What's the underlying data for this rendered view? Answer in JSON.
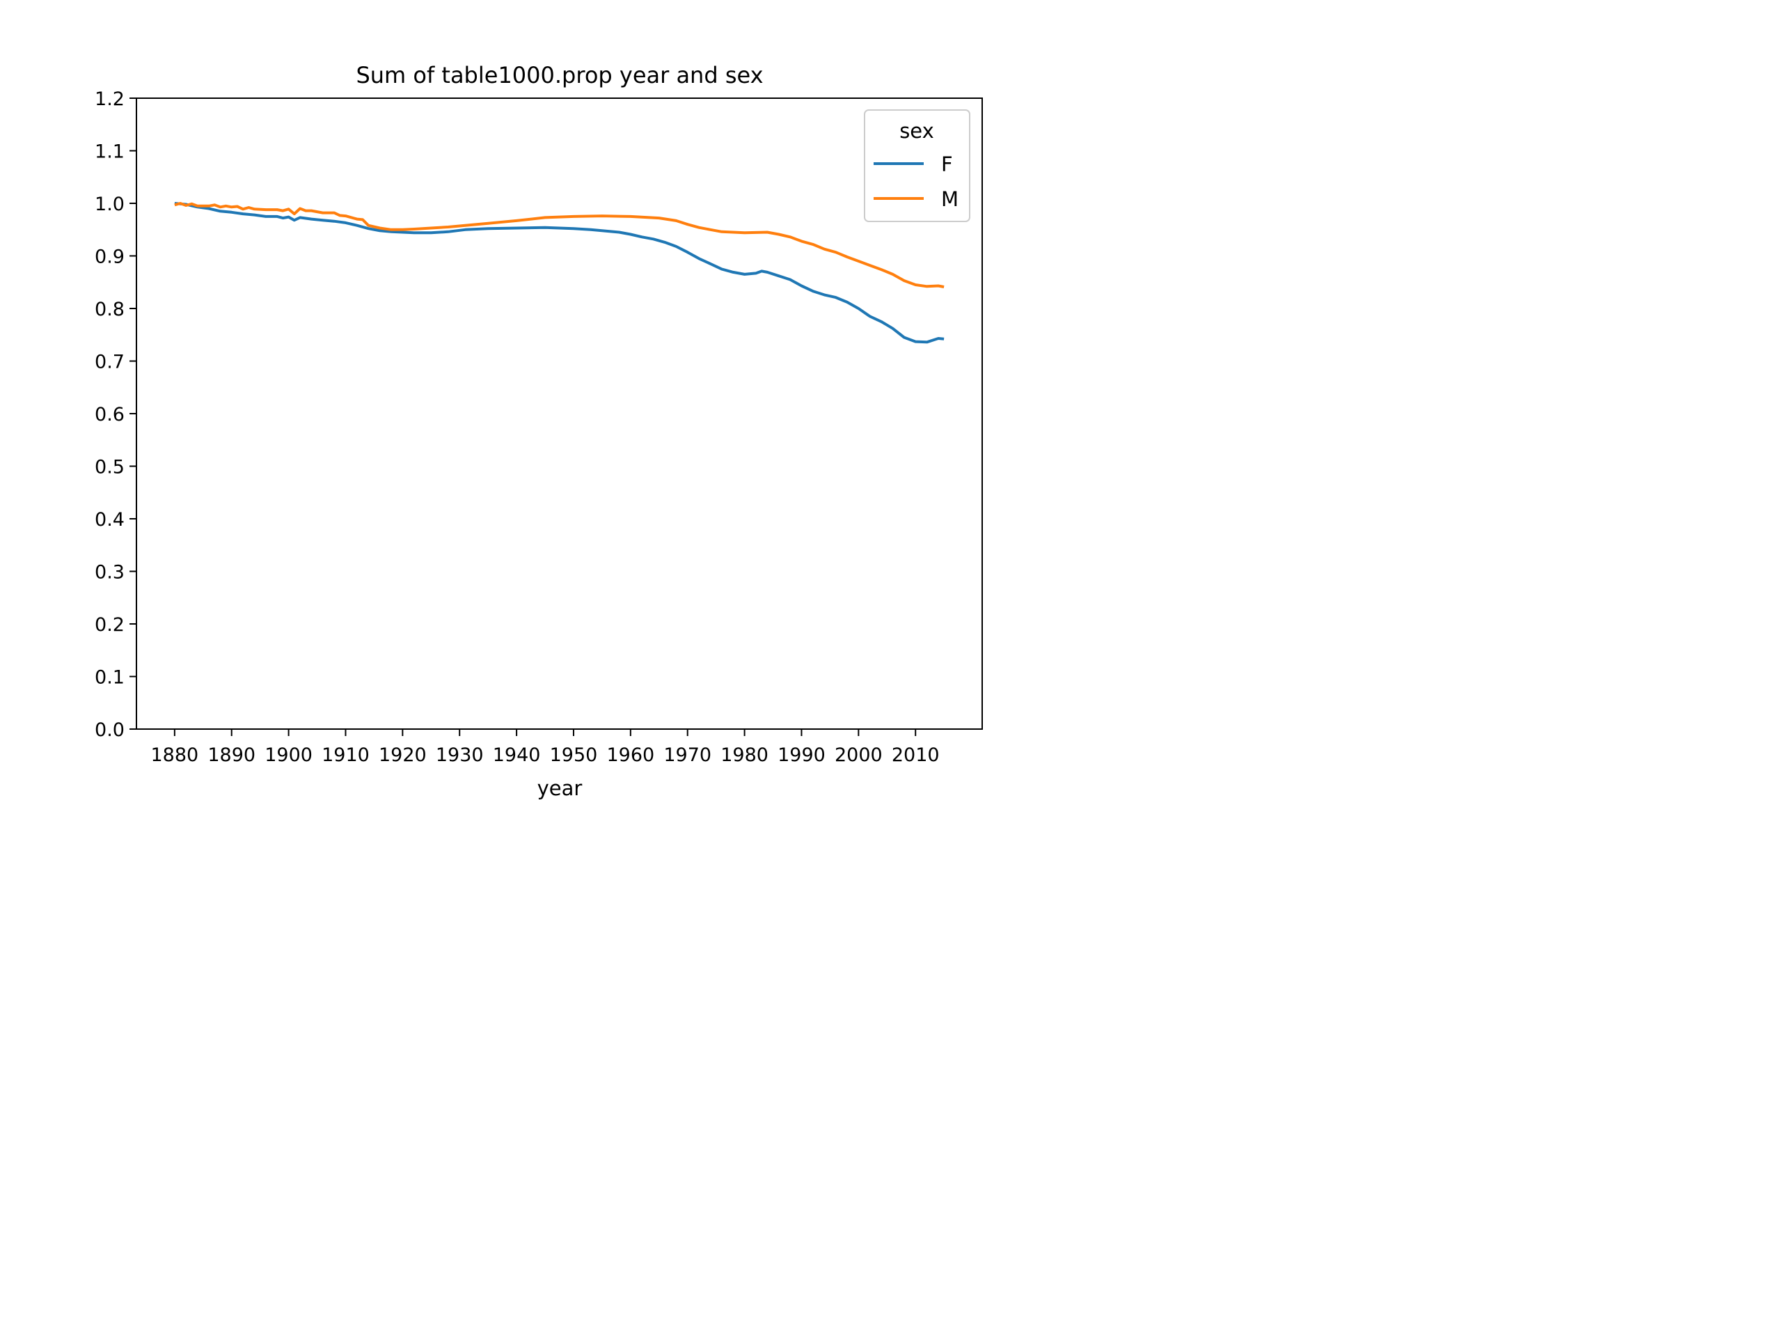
{
  "chart_data": {
    "type": "line",
    "title": "Sum of table1000.prop year and sex",
    "xlabel": "year",
    "ylabel": "",
    "xlim": [
      1873.3,
      2021.7
    ],
    "ylim": [
      0.0,
      1.2
    ],
    "xticks": [
      1880,
      1890,
      1900,
      1910,
      1920,
      1930,
      1940,
      1950,
      1960,
      1970,
      1980,
      1990,
      2000,
      2010
    ],
    "yticks": [
      0.0,
      0.1,
      0.2,
      0.3,
      0.4,
      0.5,
      0.6,
      0.7,
      0.8,
      0.9,
      1.0,
      1.1,
      1.2
    ],
    "grid": false,
    "legend": {
      "title": "sex",
      "placement": "top-right"
    },
    "series": [
      {
        "name": "F",
        "color": "#1f77b4",
        "points": [
          [
            1880,
            1.0
          ],
          [
            1882,
            0.998
          ],
          [
            1884,
            0.993
          ],
          [
            1886,
            0.99
          ],
          [
            1888,
            0.985
          ],
          [
            1890,
            0.983
          ],
          [
            1892,
            0.98
          ],
          [
            1894,
            0.978
          ],
          [
            1896,
            0.975
          ],
          [
            1898,
            0.975
          ],
          [
            1899,
            0.972
          ],
          [
            1900,
            0.974
          ],
          [
            1901,
            0.968
          ],
          [
            1902,
            0.973
          ],
          [
            1904,
            0.97
          ],
          [
            1906,
            0.968
          ],
          [
            1908,
            0.966
          ],
          [
            1910,
            0.963
          ],
          [
            1912,
            0.958
          ],
          [
            1914,
            0.952
          ],
          [
            1916,
            0.948
          ],
          [
            1918,
            0.946
          ],
          [
            1920,
            0.945
          ],
          [
            1922,
            0.944
          ],
          [
            1925,
            0.944
          ],
          [
            1928,
            0.946
          ],
          [
            1931,
            0.95
          ],
          [
            1935,
            0.952
          ],
          [
            1940,
            0.953
          ],
          [
            1945,
            0.954
          ],
          [
            1950,
            0.952
          ],
          [
            1953,
            0.95
          ],
          [
            1956,
            0.947
          ],
          [
            1958,
            0.945
          ],
          [
            1960,
            0.941
          ],
          [
            1962,
            0.936
          ],
          [
            1964,
            0.932
          ],
          [
            1966,
            0.926
          ],
          [
            1968,
            0.918
          ],
          [
            1970,
            0.907
          ],
          [
            1972,
            0.895
          ],
          [
            1974,
            0.885
          ],
          [
            1976,
            0.875
          ],
          [
            1978,
            0.869
          ],
          [
            1980,
            0.865
          ],
          [
            1982,
            0.867
          ],
          [
            1983,
            0.871
          ],
          [
            1984,
            0.869
          ],
          [
            1986,
            0.862
          ],
          [
            1988,
            0.855
          ],
          [
            1990,
            0.843
          ],
          [
            1992,
            0.833
          ],
          [
            1994,
            0.826
          ],
          [
            1996,
            0.821
          ],
          [
            1998,
            0.812
          ],
          [
            2000,
            0.8
          ],
          [
            2002,
            0.785
          ],
          [
            2004,
            0.775
          ],
          [
            2006,
            0.762
          ],
          [
            2008,
            0.745
          ],
          [
            2010,
            0.737
          ],
          [
            2012,
            0.736
          ],
          [
            2014,
            0.743
          ],
          [
            2015,
            0.742
          ]
        ]
      },
      {
        "name": "M",
        "color": "#ff7f0e",
        "points": [
          [
            1880,
            0.997
          ],
          [
            1881,
            1.0
          ],
          [
            1882,
            0.996
          ],
          [
            1883,
            0.999
          ],
          [
            1884,
            0.995
          ],
          [
            1886,
            0.995
          ],
          [
            1887,
            0.997
          ],
          [
            1888,
            0.993
          ],
          [
            1889,
            0.995
          ],
          [
            1890,
            0.993
          ],
          [
            1891,
            0.994
          ],
          [
            1892,
            0.989
          ],
          [
            1893,
            0.992
          ],
          [
            1894,
            0.989
          ],
          [
            1896,
            0.988
          ],
          [
            1898,
            0.988
          ],
          [
            1899,
            0.986
          ],
          [
            1900,
            0.989
          ],
          [
            1901,
            0.98
          ],
          [
            1902,
            0.99
          ],
          [
            1903,
            0.986
          ],
          [
            1904,
            0.986
          ],
          [
            1906,
            0.982
          ],
          [
            1908,
            0.982
          ],
          [
            1909,
            0.977
          ],
          [
            1910,
            0.976
          ],
          [
            1912,
            0.97
          ],
          [
            1913,
            0.969
          ],
          [
            1914,
            0.958
          ],
          [
            1916,
            0.953
          ],
          [
            1918,
            0.95
          ],
          [
            1920,
            0.95
          ],
          [
            1922,
            0.951
          ],
          [
            1925,
            0.953
          ],
          [
            1928,
            0.955
          ],
          [
            1931,
            0.958
          ],
          [
            1935,
            0.962
          ],
          [
            1940,
            0.967
          ],
          [
            1945,
            0.973
          ],
          [
            1950,
            0.975
          ],
          [
            1955,
            0.976
          ],
          [
            1960,
            0.975
          ],
          [
            1965,
            0.972
          ],
          [
            1968,
            0.967
          ],
          [
            1970,
            0.96
          ],
          [
            1972,
            0.954
          ],
          [
            1974,
            0.95
          ],
          [
            1976,
            0.946
          ],
          [
            1978,
            0.945
          ],
          [
            1980,
            0.944
          ],
          [
            1984,
            0.945
          ],
          [
            1986,
            0.941
          ],
          [
            1988,
            0.936
          ],
          [
            1990,
            0.928
          ],
          [
            1992,
            0.922
          ],
          [
            1994,
            0.913
          ],
          [
            1996,
            0.907
          ],
          [
            1998,
            0.898
          ],
          [
            2000,
            0.89
          ],
          [
            2002,
            0.882
          ],
          [
            2004,
            0.874
          ],
          [
            2006,
            0.865
          ],
          [
            2008,
            0.853
          ],
          [
            2010,
            0.845
          ],
          [
            2012,
            0.842
          ],
          [
            2014,
            0.843
          ],
          [
            2015,
            0.841
          ]
        ]
      }
    ]
  }
}
